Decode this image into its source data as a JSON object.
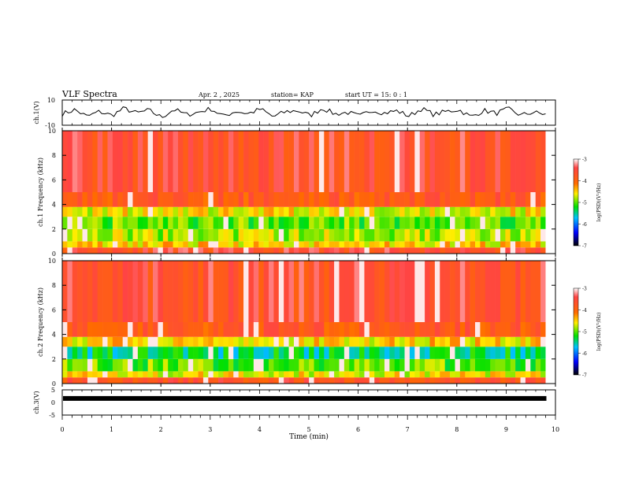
{
  "header": {
    "title": "VLF Spectra",
    "date": "Apr. 2 , 2025",
    "station": "station= KAP",
    "start": "start  UT =   15: 0  : 1"
  },
  "chart_data": [
    {
      "type": "line",
      "panel": "ch1-waveform",
      "ylabel": "ch.1(V)",
      "ylim": [
        -10,
        10
      ],
      "yticks": [
        "10",
        "-10"
      ],
      "xlim": [
        0,
        10
      ],
      "series": [
        {
          "values": [
            -1.0,
            2.3,
            -3.1,
            0.8,
            -2.2,
            3.4,
            -0.5,
            1.9,
            -3.8,
            2.6,
            -1.7,
            0.4,
            3.1,
            -2.9,
            1.2,
            -0.8,
            2.8,
            -3.3,
            0.6,
            1.7,
            -2.4,
            3.6,
            -1.1,
            0.2,
            -3.0,
            2.1,
            -0.3,
            1.4,
            -2.7,
            3.2,
            -1.6,
            0.9,
            2.4,
            -3.5,
            1.8,
            -0.6,
            2.9,
            -2.1,
            0.3,
            -1.4
          ]
        }
      ]
    },
    {
      "type": "heatmap",
      "panel": "ch1-spectrogram",
      "ylabel": "ch.1 Frequency (kHz)",
      "ylim": [
        0,
        10
      ],
      "yticks": [
        "0",
        "2",
        "4",
        "6",
        "8",
        "10"
      ],
      "xlim": [
        0,
        10
      ],
      "colorbar": {
        "label": "log(PSD)(V²/Hz)",
        "range": [
          -7,
          -3
        ],
        "ticks": [
          "-3",
          "-4",
          "-5",
          "-6",
          "-7"
        ]
      },
      "bands": [
        {
          "f": [
            0.0,
            0.5
          ],
          "level": -3.6
        },
        {
          "f": [
            0.5,
            1.0
          ],
          "level": -4.5
        },
        {
          "f": [
            1.0,
            2.0
          ],
          "level": -4.8
        },
        {
          "f": [
            2.0,
            3.0
          ],
          "level": -5.0
        },
        {
          "f": [
            3.0,
            3.8
          ],
          "level": -4.6
        },
        {
          "f": [
            3.8,
            5.0
          ],
          "level": -3.8
        },
        {
          "f": [
            5.0,
            10.0
          ],
          "level": -3.6
        }
      ]
    },
    {
      "type": "heatmap",
      "panel": "ch2-spectrogram",
      "ylabel": "ch.2 Frequency (kHz)",
      "ylim": [
        0,
        10
      ],
      "yticks": [
        "0",
        "2",
        "4",
        "6",
        "8",
        "10"
      ],
      "xlim": [
        0,
        10
      ],
      "colorbar": {
        "label": "log(PSD)(V²/Hz)",
        "range": [
          -7,
          -3
        ],
        "ticks": [
          "-3",
          "-4",
          "-5",
          "-6",
          "-7"
        ]
      },
      "bands": [
        {
          "f": [
            0.0,
            0.5
          ],
          "level": -3.7
        },
        {
          "f": [
            0.5,
            1.0
          ],
          "level": -4.6
        },
        {
          "f": [
            1.0,
            2.0
          ],
          "level": -5.0
        },
        {
          "f": [
            2.0,
            3.0
          ],
          "level": -5.4
        },
        {
          "f": [
            3.0,
            3.8
          ],
          "level": -4.5
        },
        {
          "f": [
            3.8,
            5.0
          ],
          "level": -3.8
        },
        {
          "f": [
            5.0,
            10.0
          ],
          "level": -3.6
        }
      ]
    },
    {
      "type": "line",
      "panel": "ch3-waveform",
      "ylabel": "ch.3(V)",
      "ylim": [
        -5,
        5
      ],
      "yticks": [
        "5",
        "0",
        "-5"
      ],
      "xlim": [
        0,
        10
      ],
      "xticks": [
        "0",
        "1",
        "2",
        "3",
        "4",
        "5",
        "6",
        "7",
        "8",
        "9",
        "10"
      ],
      "xlabel": "Time  (min)",
      "series": [
        {
          "values": [
            1.6,
            1.6
          ]
        }
      ]
    }
  ]
}
